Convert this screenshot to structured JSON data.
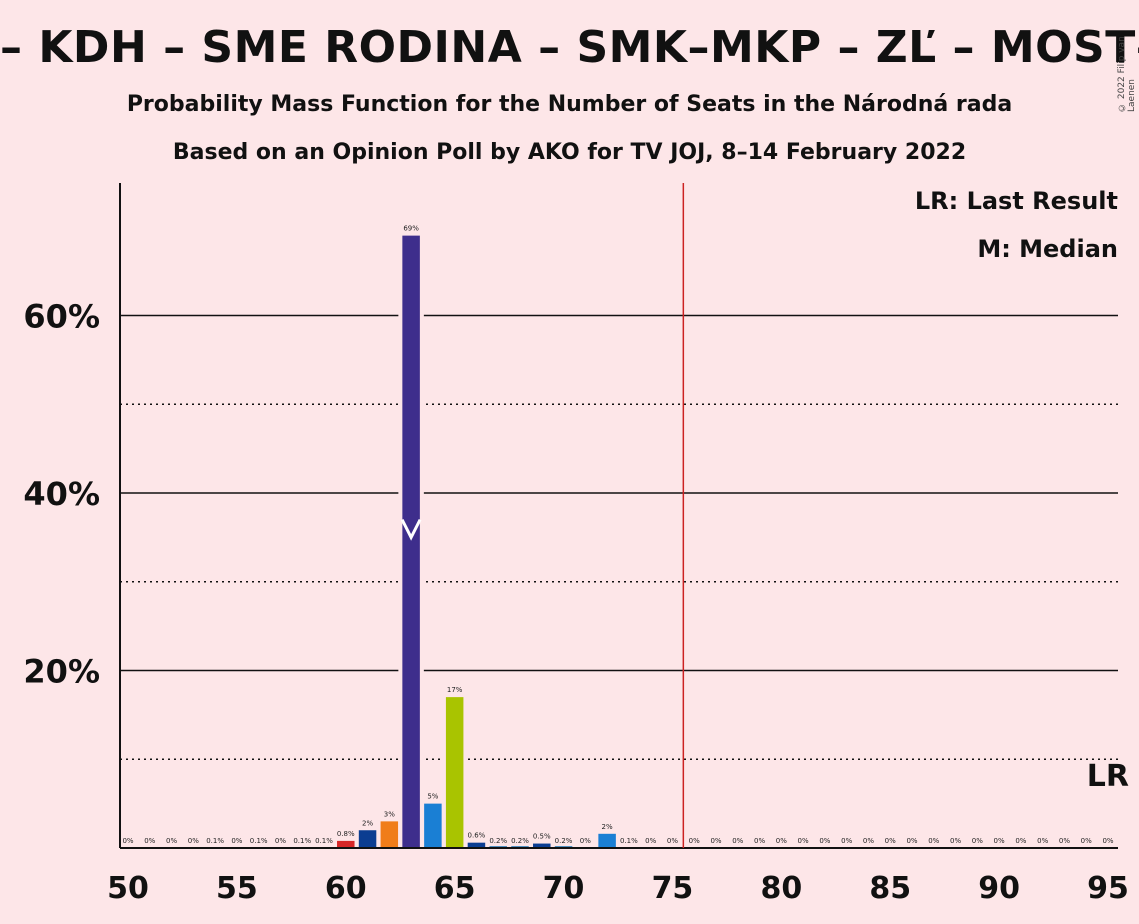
{
  "title": "– KDH – SME RODINA – SMK–MKP – ZĽ – MOST–HÍD",
  "subtitle1": "Probability Mass Function for the Number of Seats in the Národná rada",
  "subtitle2": "Based on an Opinion Poll by AKO for TV JOJ, 8–14 February 2022",
  "copyright": "© 2022 Filip van Laenen",
  "legend": {
    "last_result": "LR: Last Result",
    "median": "M: Median"
  },
  "lr_marker": "LR",
  "colors": {
    "background": "#fde6e8",
    "median_bar": "#3e2e8c",
    "lr_line": "#cc2222"
  },
  "chart_data": {
    "type": "bar",
    "xlim": [
      50,
      95
    ],
    "ylim": [
      0,
      75
    ],
    "ylabel_ticks": [
      "20%",
      "40%",
      "60%"
    ],
    "x_ticks": [
      "50",
      "55",
      "60",
      "65",
      "70",
      "75",
      "80",
      "85",
      "90",
      "95"
    ],
    "median": 63,
    "last_result": 76,
    "grid_solid": [
      20,
      40,
      60
    ],
    "grid_dotted": [
      10,
      30,
      50
    ],
    "bars": [
      {
        "x": 50,
        "value": 0,
        "label": "0%",
        "color": "#1f77b4"
      },
      {
        "x": 51,
        "value": 0,
        "label": "0%",
        "color": "#1f77b4"
      },
      {
        "x": 52,
        "value": 0,
        "label": "0%",
        "color": "#1f77b4"
      },
      {
        "x": 53,
        "value": 0,
        "label": "0%",
        "color": "#1f77b4"
      },
      {
        "x": 54,
        "value": 0.1,
        "label": "0.1%",
        "color": "#1f77b4"
      },
      {
        "x": 55,
        "value": 0,
        "label": "0%",
        "color": "#1f77b4"
      },
      {
        "x": 56,
        "value": 0.1,
        "label": "0.1%",
        "color": "#1f77b4"
      },
      {
        "x": 57,
        "value": 0,
        "label": "0%",
        "color": "#1f77b4"
      },
      {
        "x": 58,
        "value": 0.1,
        "label": "0.1%",
        "color": "#1f77b4"
      },
      {
        "x": 59,
        "value": 0.1,
        "label": "0.1%",
        "color": "#1f77b4"
      },
      {
        "x": 60,
        "value": 0.8,
        "label": "0.8%",
        "color": "#d62728"
      },
      {
        "x": 61,
        "value": 2,
        "label": "2%",
        "color": "#0b3d91"
      },
      {
        "x": 62,
        "value": 3,
        "label": "3%",
        "color": "#f07d1a"
      },
      {
        "x": 63,
        "value": 69,
        "label": "69%",
        "color": "#3e2e8c"
      },
      {
        "x": 64,
        "value": 5,
        "label": "5%",
        "color": "#1a7fd4"
      },
      {
        "x": 65,
        "value": 17,
        "label": "17%",
        "color": "#a9c400"
      },
      {
        "x": 66,
        "value": 0.6,
        "label": "0.6%",
        "color": "#0b3d91"
      },
      {
        "x": 67,
        "value": 0.2,
        "label": "0.2%",
        "color": "#1f77b4"
      },
      {
        "x": 68,
        "value": 0.2,
        "label": "0.2%",
        "color": "#1f77b4"
      },
      {
        "x": 69,
        "value": 0.5,
        "label": "0.5%",
        "color": "#0b3d91"
      },
      {
        "x": 70,
        "value": 0.2,
        "label": "0.2%",
        "color": "#1f77b4"
      },
      {
        "x": 71,
        "value": 0,
        "label": "0%",
        "color": "#1f77b4"
      },
      {
        "x": 72,
        "value": 1.6,
        "label": "2%",
        "color": "#1a7fd4"
      },
      {
        "x": 73,
        "value": 0.1,
        "label": "0.1%",
        "color": "#1f77b4"
      },
      {
        "x": 74,
        "value": 0,
        "label": "0%",
        "color": "#1f77b4"
      },
      {
        "x": 75,
        "value": 0,
        "label": "0%",
        "color": "#1f77b4"
      },
      {
        "x": 76,
        "value": 0,
        "label": "0%",
        "color": "#1f77b4"
      },
      {
        "x": 77,
        "value": 0,
        "label": "0%",
        "color": "#1f77b4"
      },
      {
        "x": 78,
        "value": 0,
        "label": "0%",
        "color": "#1f77b4"
      },
      {
        "x": 79,
        "value": 0,
        "label": "0%",
        "color": "#1f77b4"
      },
      {
        "x": 80,
        "value": 0,
        "label": "0%",
        "color": "#1f77b4"
      },
      {
        "x": 81,
        "value": 0,
        "label": "0%",
        "color": "#1f77b4"
      },
      {
        "x": 82,
        "value": 0,
        "label": "0%",
        "color": "#1f77b4"
      },
      {
        "x": 83,
        "value": 0,
        "label": "0%",
        "color": "#1f77b4"
      },
      {
        "x": 84,
        "value": 0,
        "label": "0%",
        "color": "#1f77b4"
      },
      {
        "x": 85,
        "value": 0,
        "label": "0%",
        "color": "#1f77b4"
      },
      {
        "x": 86,
        "value": 0,
        "label": "0%",
        "color": "#1f77b4"
      },
      {
        "x": 87,
        "value": 0,
        "label": "0%",
        "color": "#1f77b4"
      },
      {
        "x": 88,
        "value": 0,
        "label": "0%",
        "color": "#1f77b4"
      },
      {
        "x": 89,
        "value": 0,
        "label": "0%",
        "color": "#1f77b4"
      },
      {
        "x": 90,
        "value": 0,
        "label": "0%",
        "color": "#1f77b4"
      },
      {
        "x": 91,
        "value": 0,
        "label": "0%",
        "color": "#1f77b4"
      },
      {
        "x": 92,
        "value": 0,
        "label": "0%",
        "color": "#1f77b4"
      },
      {
        "x": 93,
        "value": 0,
        "label": "0%",
        "color": "#1f77b4"
      },
      {
        "x": 94,
        "value": 0,
        "label": "0%",
        "color": "#1f77b4"
      },
      {
        "x": 95,
        "value": 0,
        "label": "0%",
        "color": "#1f77b4"
      }
    ]
  }
}
